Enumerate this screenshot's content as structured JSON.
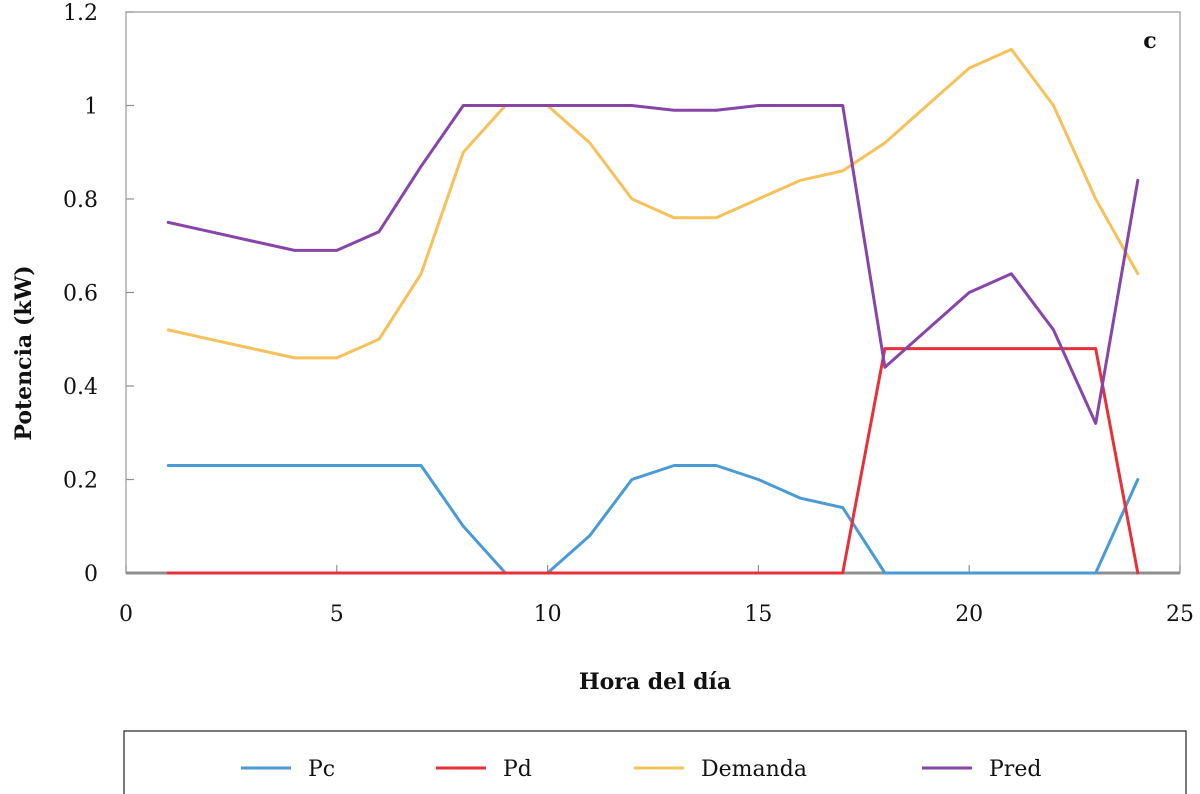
{
  "chart_data": {
    "type": "line",
    "panel_label": "c",
    "xlabel": "Hora del día",
    "ylabel": "Potencia (kW)",
    "xlim": [
      0,
      25
    ],
    "ylim": [
      0,
      1.2
    ],
    "xticks": [
      0,
      5,
      10,
      15,
      20,
      25
    ],
    "yticks": [
      0,
      0.2,
      0.4,
      0.6,
      0.8,
      1,
      1.2
    ],
    "xtick_labels": [
      "0",
      "5",
      "10",
      "15",
      "20",
      "25"
    ],
    "ytick_labels": [
      "0",
      "0.2",
      "0.4",
      "0.6",
      "0.8",
      "1",
      "1.2"
    ],
    "grid": false,
    "legend_position": "bottom",
    "x": [
      1,
      2,
      3,
      4,
      5,
      6,
      7,
      8,
      9,
      10,
      11,
      12,
      13,
      14,
      15,
      16,
      17,
      18,
      19,
      20,
      21,
      22,
      23,
      24
    ],
    "series": [
      {
        "name": "Pc",
        "color": "#4a9ad6",
        "values": [
          0.23,
          0.23,
          0.23,
          0.23,
          0.23,
          0.23,
          0.23,
          0.1,
          0,
          0,
          0.08,
          0.2,
          0.23,
          0.23,
          0.2,
          0.16,
          0.14,
          0,
          0,
          0,
          0,
          0,
          0,
          0.2
        ]
      },
      {
        "name": "Pd",
        "color": "#e8303a",
        "values": [
          0,
          0,
          0,
          0,
          0,
          0,
          0,
          0,
          0,
          0,
          0,
          0,
          0,
          0,
          0,
          0,
          0,
          0.48,
          0.48,
          0.48,
          0.48,
          0.48,
          0.48,
          0
        ]
      },
      {
        "name": "Demanda",
        "color": "#f5c15a",
        "values": [
          0.52,
          0.5,
          0.48,
          0.46,
          0.46,
          0.5,
          0.64,
          0.9,
          1,
          1,
          0.92,
          0.8,
          0.76,
          0.76,
          0.8,
          0.84,
          0.86,
          0.92,
          1,
          1.08,
          1.12,
          1,
          0.8,
          0.64
        ]
      },
      {
        "name": "Pred",
        "color": "#8845a8",
        "values": [
          0.75,
          0.73,
          0.71,
          0.69,
          0.69,
          0.73,
          0.87,
          1,
          1,
          1,
          1,
          1,
          0.99,
          0.99,
          1,
          1,
          1,
          0.44,
          0.52,
          0.6,
          0.64,
          0.52,
          0.32,
          0.84
        ]
      }
    ]
  }
}
